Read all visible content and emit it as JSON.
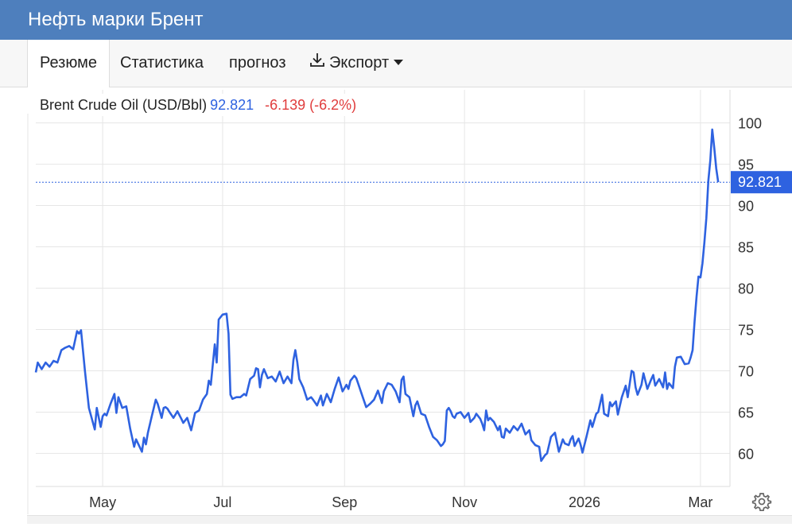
{
  "header": {
    "title": "Нефть марки Брент"
  },
  "tabs": [
    {
      "label": "Резюме",
      "active": true
    },
    {
      "label": "Статистика",
      "active": false
    },
    {
      "label": "прогноз",
      "active": false
    },
    {
      "label": "Экспорт",
      "active": false
    }
  ],
  "legend": {
    "name": "Brent Crude Oil (USD/Bbl)",
    "value": "92.821",
    "change": "-6.139 (-6.2%)"
  },
  "price_tag": "92.821",
  "colors": {
    "header": "#4e7fbd",
    "line": "#2e62e0",
    "negative": "#e03c3c",
    "tag": "#2e62e0"
  },
  "icons": {
    "export": "download-icon",
    "settings": "gear-icon"
  },
  "chart_data": {
    "type": "line",
    "title": "",
    "xlabel": "",
    "ylabel": "",
    "x_range": [
      "2025-03-28",
      "2026-03-16"
    ],
    "ylim": [
      56,
      104
    ],
    "y_ticks": [
      60,
      65,
      70,
      75,
      80,
      85,
      90,
      95,
      100
    ],
    "x_ticks": [
      {
        "date": "2025-05-01",
        "label": "May"
      },
      {
        "date": "2025-07-01",
        "label": "Jul"
      },
      {
        "date": "2025-09-01",
        "label": "Sep"
      },
      {
        "date": "2025-11-01",
        "label": "Nov"
      },
      {
        "date": "2026-01-01",
        "label": "2026"
      },
      {
        "date": "2026-03-01",
        "label": "Mar"
      }
    ],
    "grid": true,
    "last_value": 92.821,
    "series": [
      {
        "name": "Brent Crude Oil (USD/Bbl)",
        "points": [
          [
            "2025-03-28",
            69.8
          ],
          [
            "2025-03-29",
            71.0
          ],
          [
            "2025-03-31",
            70.2
          ],
          [
            "2025-04-02",
            71.0
          ],
          [
            "2025-04-04",
            70.5
          ],
          [
            "2025-04-06",
            71.2
          ],
          [
            "2025-04-08",
            71.0
          ],
          [
            "2025-04-10",
            72.5
          ],
          [
            "2025-04-12",
            72.8
          ],
          [
            "2025-04-14",
            73.0
          ],
          [
            "2025-04-16",
            72.6
          ],
          [
            "2025-04-18",
            74.8
          ],
          [
            "2025-04-19",
            74.5
          ],
          [
            "2025-04-20",
            74.9
          ],
          [
            "2025-04-22",
            70.0
          ],
          [
            "2025-04-24",
            65.5
          ],
          [
            "2025-04-27",
            62.9
          ],
          [
            "2025-04-28",
            65.5
          ],
          [
            "2025-04-30",
            63.2
          ],
          [
            "2025-05-01",
            64.5
          ],
          [
            "2025-05-02",
            64.8
          ],
          [
            "2025-05-03",
            64.6
          ],
          [
            "2025-05-05",
            66.0
          ],
          [
            "2025-05-07",
            67.2
          ],
          [
            "2025-05-08",
            64.9
          ],
          [
            "2025-05-09",
            66.8
          ],
          [
            "2025-05-11",
            65.5
          ],
          [
            "2025-05-13",
            65.7
          ],
          [
            "2025-05-15",
            63.0
          ],
          [
            "2025-05-17",
            60.8
          ],
          [
            "2025-05-18",
            61.7
          ],
          [
            "2025-05-21",
            60.2
          ],
          [
            "2025-05-22",
            61.9
          ],
          [
            "2025-05-23",
            61.1
          ],
          [
            "2025-05-24",
            62.5
          ],
          [
            "2025-05-26",
            64.5
          ],
          [
            "2025-05-28",
            66.5
          ],
          [
            "2025-05-29",
            66.0
          ],
          [
            "2025-05-31",
            64.3
          ],
          [
            "2025-06-01",
            65.5
          ],
          [
            "2025-06-02",
            65.6
          ],
          [
            "2025-06-03",
            65.4
          ],
          [
            "2025-06-04",
            65.0
          ],
          [
            "2025-06-06",
            64.3
          ],
          [
            "2025-06-08",
            65.1
          ],
          [
            "2025-06-10",
            64.2
          ],
          [
            "2025-06-11",
            63.7
          ],
          [
            "2025-06-13",
            64.3
          ],
          [
            "2025-06-15",
            62.8
          ],
          [
            "2025-06-17",
            64.9
          ],
          [
            "2025-06-19",
            65.2
          ],
          [
            "2025-06-21",
            66.5
          ],
          [
            "2025-06-23",
            67.2
          ],
          [
            "2025-06-24",
            68.8
          ],
          [
            "2025-06-25",
            68.3
          ],
          [
            "2025-06-27",
            73.2
          ],
          [
            "2025-06-28",
            71.0
          ],
          [
            "2025-06-29",
            76.2
          ],
          [
            "2025-07-01",
            76.8
          ],
          [
            "2025-07-03",
            76.9
          ],
          [
            "2025-07-04",
            74.5
          ],
          [
            "2025-07-05",
            67.1
          ],
          [
            "2025-07-06",
            66.6
          ],
          [
            "2025-07-08",
            66.8
          ],
          [
            "2025-07-10",
            66.8
          ],
          [
            "2025-07-12",
            67.2
          ],
          [
            "2025-07-13",
            67.0
          ],
          [
            "2025-07-15",
            69.0
          ],
          [
            "2025-07-17",
            69.4
          ],
          [
            "2025-07-18",
            70.3
          ],
          [
            "2025-07-19",
            70.2
          ],
          [
            "2025-07-20",
            68.0
          ],
          [
            "2025-07-21",
            69.5
          ],
          [
            "2025-07-22",
            70.2
          ],
          [
            "2025-07-24",
            69.1
          ],
          [
            "2025-07-26",
            69.3
          ],
          [
            "2025-07-28",
            68.7
          ],
          [
            "2025-07-30",
            69.9
          ],
          [
            "2025-08-01",
            68.5
          ],
          [
            "2025-08-03",
            69.3
          ],
          [
            "2025-08-05",
            68.5
          ],
          [
            "2025-08-06",
            71.3
          ],
          [
            "2025-08-07",
            72.5
          ],
          [
            "2025-08-08",
            71.0
          ],
          [
            "2025-08-09",
            69.0
          ],
          [
            "2025-08-11",
            68.0
          ],
          [
            "2025-08-13",
            66.5
          ],
          [
            "2025-08-15",
            66.8
          ],
          [
            "2025-08-16",
            66.5
          ],
          [
            "2025-08-18",
            65.8
          ],
          [
            "2025-08-20",
            67.0
          ],
          [
            "2025-08-21",
            65.8
          ],
          [
            "2025-08-23",
            67.2
          ],
          [
            "2025-08-25",
            66.2
          ],
          [
            "2025-08-27",
            67.8
          ],
          [
            "2025-08-29",
            69.2
          ],
          [
            "2025-08-31",
            67.5
          ],
          [
            "2025-09-02",
            68.3
          ],
          [
            "2025-09-03",
            67.8
          ],
          [
            "2025-09-04",
            68.8
          ],
          [
            "2025-09-06",
            69.4
          ],
          [
            "2025-09-07",
            69.1
          ],
          [
            "2025-09-08",
            68.4
          ],
          [
            "2025-09-10",
            67.0
          ],
          [
            "2025-09-12",
            65.6
          ],
          [
            "2025-09-14",
            66.0
          ],
          [
            "2025-09-16",
            66.5
          ],
          [
            "2025-09-18",
            67.6
          ],
          [
            "2025-09-20",
            66.1
          ],
          [
            "2025-09-21",
            67.5
          ],
          [
            "2025-09-23",
            68.5
          ],
          [
            "2025-09-25",
            68.3
          ],
          [
            "2025-09-27",
            67.5
          ],
          [
            "2025-09-29",
            66.2
          ],
          [
            "2025-09-30",
            68.9
          ],
          [
            "2025-10-01",
            69.3
          ],
          [
            "2025-10-02",
            67.2
          ],
          [
            "2025-10-04",
            66.8
          ],
          [
            "2025-10-06",
            64.5
          ],
          [
            "2025-10-07",
            65.8
          ],
          [
            "2025-10-08",
            66.3
          ],
          [
            "2025-10-10",
            64.8
          ],
          [
            "2025-10-12",
            64.6
          ],
          [
            "2025-10-14",
            63.2
          ],
          [
            "2025-10-16",
            62.0
          ],
          [
            "2025-10-18",
            61.6
          ],
          [
            "2025-10-20",
            60.9
          ],
          [
            "2025-10-21",
            61.1
          ],
          [
            "2025-10-22",
            61.5
          ],
          [
            "2025-10-23",
            65.2
          ],
          [
            "2025-10-24",
            65.5
          ],
          [
            "2025-10-25",
            65.1
          ],
          [
            "2025-10-26",
            64.5
          ],
          [
            "2025-10-27",
            64.3
          ],
          [
            "2025-10-28",
            64.8
          ],
          [
            "2025-10-30",
            65.0
          ],
          [
            "2025-11-01",
            64.3
          ],
          [
            "2025-11-03",
            64.9
          ],
          [
            "2025-11-04",
            63.8
          ],
          [
            "2025-11-06",
            64.3
          ],
          [
            "2025-11-07",
            64.8
          ],
          [
            "2025-11-09",
            64.2
          ],
          [
            "2025-11-10",
            63.6
          ],
          [
            "2025-11-11",
            62.8
          ],
          [
            "2025-11-12",
            65.2
          ],
          [
            "2025-11-13",
            64.0
          ],
          [
            "2025-11-14",
            64.3
          ],
          [
            "2025-11-16",
            63.8
          ],
          [
            "2025-11-18",
            62.8
          ],
          [
            "2025-11-19",
            63.3
          ],
          [
            "2025-11-20",
            62.0
          ],
          [
            "2025-11-21",
            61.9
          ],
          [
            "2025-11-22",
            63.0
          ],
          [
            "2025-11-24",
            62.5
          ],
          [
            "2025-11-26",
            63.3
          ],
          [
            "2025-11-28",
            62.8
          ],
          [
            "2025-11-30",
            63.6
          ],
          [
            "2025-12-02",
            62.3
          ],
          [
            "2025-12-04",
            62.8
          ],
          [
            "2025-12-05",
            61.6
          ],
          [
            "2025-12-07",
            61.0
          ],
          [
            "2025-12-09",
            60.8
          ],
          [
            "2025-12-10",
            59.1
          ],
          [
            "2025-12-12",
            59.8
          ],
          [
            "2025-12-13",
            60.0
          ],
          [
            "2025-12-15",
            62.0
          ],
          [
            "2025-12-17",
            62.5
          ],
          [
            "2025-12-19",
            60.2
          ],
          [
            "2025-12-21",
            61.7
          ],
          [
            "2025-12-22",
            61.2
          ],
          [
            "2025-12-24",
            61.0
          ],
          [
            "2025-12-25",
            61.7
          ],
          [
            "2025-12-26",
            62.1
          ],
          [
            "2025-12-27",
            60.9
          ],
          [
            "2025-12-29",
            61.8
          ],
          [
            "2025-12-30",
            61.1
          ],
          [
            "2025-12-31",
            60.1
          ],
          [
            "2026-01-02",
            62.0
          ],
          [
            "2026-01-04",
            64.0
          ],
          [
            "2026-01-05",
            63.2
          ],
          [
            "2026-01-07",
            64.8
          ],
          [
            "2026-01-08",
            65.0
          ],
          [
            "2026-01-10",
            67.1
          ],
          [
            "2026-01-11",
            64.8
          ],
          [
            "2026-01-13",
            64.5
          ],
          [
            "2026-01-14",
            66.2
          ],
          [
            "2026-01-15",
            65.7
          ],
          [
            "2026-01-17",
            66.3
          ],
          [
            "2026-01-18",
            64.7
          ],
          [
            "2026-01-20",
            66.8
          ],
          [
            "2026-01-22",
            68.2
          ],
          [
            "2026-01-23",
            66.8
          ],
          [
            "2026-01-25",
            70.0
          ],
          [
            "2026-01-26",
            69.8
          ],
          [
            "2026-01-27",
            68.0
          ],
          [
            "2026-01-28",
            67.1
          ],
          [
            "2026-01-30",
            68.3
          ],
          [
            "2026-01-31",
            69.7
          ],
          [
            "2026-02-02",
            67.8
          ],
          [
            "2026-02-04",
            69.0
          ],
          [
            "2026-02-05",
            69.5
          ],
          [
            "2026-02-06",
            68.2
          ],
          [
            "2026-02-08",
            69.0
          ],
          [
            "2026-02-10",
            68.0
          ],
          [
            "2026-02-11",
            69.8
          ],
          [
            "2026-02-12",
            67.8
          ],
          [
            "2026-02-13",
            68.5
          ],
          [
            "2026-02-15",
            67.9
          ],
          [
            "2026-02-16",
            70.5
          ],
          [
            "2026-02-17",
            71.6
          ],
          [
            "2026-02-19",
            71.7
          ],
          [
            "2026-02-21",
            70.8
          ],
          [
            "2026-02-23",
            70.9
          ],
          [
            "2026-02-24",
            71.6
          ],
          [
            "2026-02-25",
            72.5
          ],
          [
            "2026-02-26",
            76.0
          ],
          [
            "2026-02-27",
            79.0
          ],
          [
            "2026-02-28",
            81.4
          ],
          [
            "2026-03-01",
            81.3
          ],
          [
            "2026-03-02",
            83.0
          ],
          [
            "2026-03-03",
            85.5
          ],
          [
            "2026-03-04",
            88.5
          ],
          [
            "2026-03-05",
            93.0
          ],
          [
            "2026-03-06",
            95.5
          ],
          [
            "2026-03-07",
            99.2
          ],
          [
            "2026-03-08",
            97.0
          ],
          [
            "2026-03-09",
            94.5
          ],
          [
            "2026-03-10",
            92.821
          ]
        ]
      }
    ]
  }
}
